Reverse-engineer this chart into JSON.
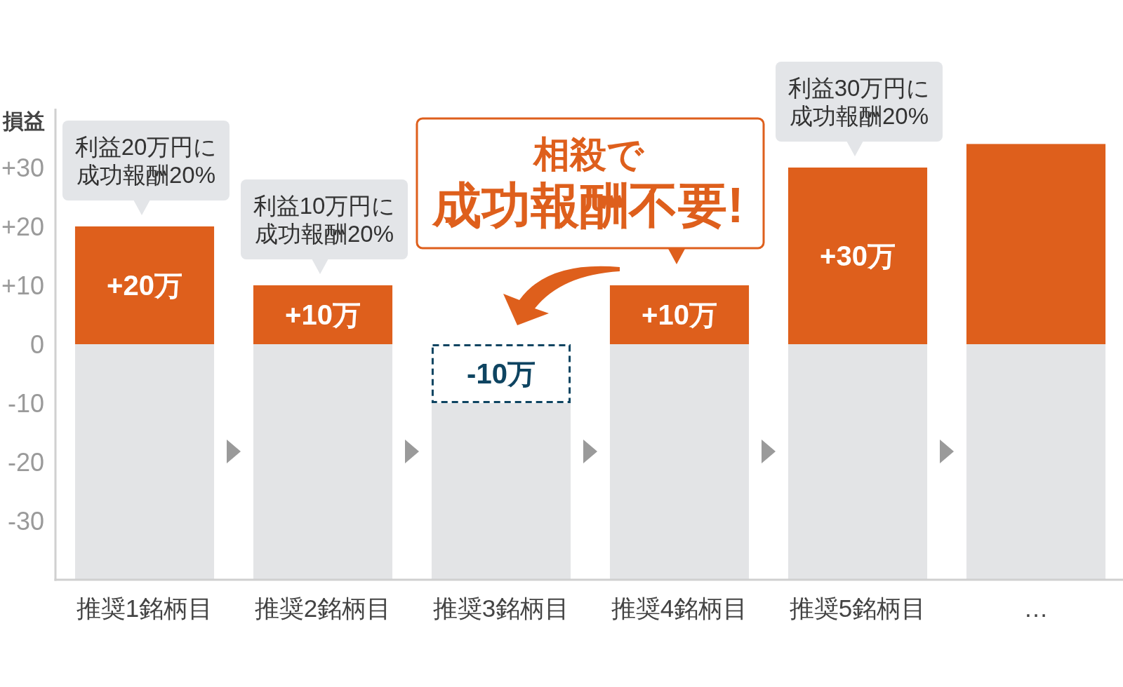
{
  "chart_data": {
    "type": "bar",
    "ylabel": "損益",
    "categories": [
      "推奨1銘柄目",
      "推奨2銘柄目",
      "推奨3銘柄目",
      "推奨4銘柄目",
      "推奨5銘柄目",
      "…"
    ],
    "stacked": true,
    "series": [
      {
        "color": "#de5f1c",
        "values": [
          20,
          10,
          null,
          10,
          30,
          34
        ],
        "value_labels": [
          "+20万",
          "+10万",
          null,
          "+10万",
          "+30万",
          null
        ]
      },
      {
        "color": "#0e4461",
        "line_style": "dashed",
        "values": [
          null,
          null,
          -10,
          null,
          null,
          null
        ],
        "value_labels": [
          null,
          null,
          "-10万",
          null,
          null,
          null
        ]
      },
      {
        "color": "#e3e4e6",
        "values": [
          -40,
          -40,
          -30,
          -40,
          -40,
          -40
        ]
      }
    ],
    "ylim": [
      -40,
      40
    ],
    "yticks": [
      {
        "value": 30,
        "label": "+30"
      },
      {
        "value": 20,
        "label": "+20"
      },
      {
        "value": 10,
        "label": "+10"
      },
      0,
      -10,
      -20,
      -30
    ],
    "annotations": [
      {
        "text": "利益20万円に成功報酬20%",
        "x": "推奨1銘柄目",
        "y": 20
      },
      {
        "text": "利益10万円に成功報酬20%",
        "x": "推奨2銘柄目",
        "y": 10
      },
      {
        "text": "利益30万円に成功報酬20%",
        "x": "推奨5銘柄目",
        "y": 30
      },
      "相殺で",
      {
        "text": "成功報酬不要!",
        "x": "推奨4銘柄目",
        "y": 10
      }
    ]
  }
}
